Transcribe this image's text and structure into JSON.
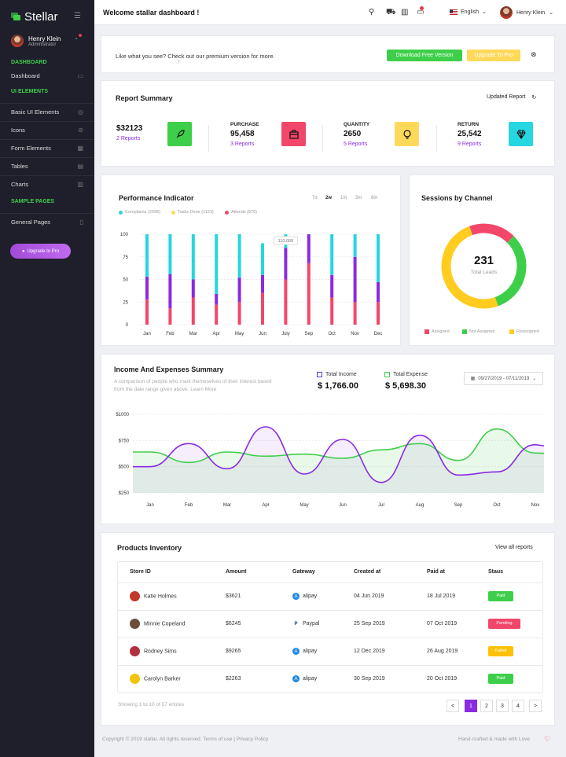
{
  "brand": {
    "name": "Stellar"
  },
  "user": {
    "name": "Henry Klein",
    "role": "Administrator"
  },
  "sidebar": {
    "sections": [
      "DASHBOARD",
      "UI ELEMENTS",
      "SAMPLE PAGES"
    ],
    "items": [
      {
        "label": "Dashboard",
        "icon": "monitor-icon"
      },
      {
        "label": "Basic UI Elements",
        "icon": "target-icon"
      },
      {
        "label": "Icons",
        "icon": "globe-icon"
      },
      {
        "label": "Form Elements",
        "icon": "grid-icon"
      },
      {
        "label": "Tables",
        "icon": "table-icon"
      },
      {
        "label": "Charts",
        "icon": "bar-chart-icon"
      },
      {
        "label": "General Pages",
        "icon": "file-icon"
      }
    ],
    "upgrade_label": "Upgrade to Pro"
  },
  "topbar": {
    "welcome": "Welcome stallar dashboard !",
    "language": "English",
    "user_name": "Henry Klein"
  },
  "promo": {
    "text": "Like what you see? Check out our premium version for more.",
    "download_label": "Download Free Version",
    "upgrade_label": "Upgrade To Pro"
  },
  "report": {
    "title": "Report Summary",
    "updated_label": "Updated Report",
    "stats": [
      {
        "label": "",
        "value": "$32123",
        "sub": "2 Reports",
        "color": "#3ecf4a",
        "icon": "rocket-icon"
      },
      {
        "label": "PURCHASE",
        "value": "95,458",
        "sub": "3 Reports",
        "color": "#f2476a",
        "icon": "briefcase-icon"
      },
      {
        "label": "QUANTITY",
        "value": "2650",
        "sub": "5 Reports",
        "color": "#ffd95a",
        "icon": "lightbulb-icon"
      },
      {
        "label": "RETURN",
        "value": "25,542",
        "sub": "9 Reports",
        "color": "#26d6e0",
        "icon": "diamond-icon"
      }
    ]
  },
  "performance": {
    "title": "Performance Indicator",
    "tabs": [
      "7d",
      "2w",
      "1m",
      "3m",
      "6m"
    ],
    "active_tab": "2w",
    "tooltip": "110,000"
  },
  "sessions": {
    "title": "Sessions by Channel",
    "total": "231",
    "total_label": "Total Leads"
  },
  "income": {
    "title": "Income And Expenses Summary",
    "description": "A comparison of people who mark themeselves of their interest based from the date range given above. Learn More",
    "total_income_label": "Total Income",
    "total_income": "$ 1,766.00",
    "total_expense_label": "Total Expense",
    "total_expense": "$ 5,698.30",
    "date_range": "09/27/2019 - 07/11/2019"
  },
  "inventory": {
    "title": "Products Inventory",
    "view_all": "View all reports",
    "columns": [
      "Store ID",
      "Amount",
      "Gateway",
      "Created at",
      "Paid at",
      "Staus"
    ],
    "rows": [
      {
        "store": "Katie Holmes",
        "amount": "$3621",
        "gateway": "alipay",
        "created": "04 Jun 2019",
        "paid": "18 Jul 2019",
        "status": "Paid",
        "status_color": "#3ecf4a",
        "avatar": "#c0392b"
      },
      {
        "store": "Minnie Copeland",
        "amount": "$6245",
        "gateway": "Paypal",
        "created": "25 Sep 2019",
        "paid": "07 Oct 2019",
        "status": "Pending",
        "status_color": "#f2476a",
        "avatar": "#6b4f3a"
      },
      {
        "store": "Rodney Sims",
        "amount": "$9265",
        "gateway": "alipay",
        "created": "12 Dec 2019",
        "paid": "26 Aug 2019",
        "status": "Failed",
        "status_color": "#ffc107",
        "avatar": "#b03040"
      },
      {
        "store": "Carolyn Barker",
        "amount": "$2263",
        "gateway": "alipay",
        "created": "30 Sep 2019",
        "paid": "20 Oct 2019",
        "status": "Paid",
        "status_color": "#3ecf4a",
        "avatar": "#f1c40f"
      }
    ],
    "showing": "Showing 1 to 10 of 57 entries",
    "pages": [
      "<",
      "1",
      "2",
      "3",
      "4",
      ">"
    ]
  },
  "footer": {
    "copyright": "Copyright © 2019 stallar. All rights reserved. Terms of use | Privacy Policy",
    "credit": "Hand-crafted & made with Love"
  },
  "chart_data": [
    {
      "type": "bar",
      "title": "Performance Indicator",
      "categories": [
        "Jan",
        "Feb",
        "Mar",
        "Apr",
        "May",
        "Jun",
        "July",
        "Sep",
        "Oct",
        "Nov",
        "Dec"
      ],
      "ylim": [
        0,
        100
      ],
      "yticks": [
        0,
        25,
        50,
        75,
        100
      ],
      "stacked": true,
      "series": [
        {
          "name": "Attends (876)",
          "color": "#f2476a",
          "values": [
            28,
            18,
            30,
            22,
            25,
            35,
            50,
            68,
            30,
            25,
            25
          ]
        },
        {
          "name": "Tasks Done (1123)",
          "color": "#8a2be2",
          "values": [
            25,
            38,
            20,
            12,
            27,
            20,
            35,
            32,
            25,
            50,
            22
          ]
        },
        {
          "name": "Complaints (2098)",
          "color": "#26d6e0",
          "values": [
            47,
            44,
            50,
            66,
            48,
            35,
            15,
            0,
            45,
            25,
            53
          ]
        }
      ]
    },
    {
      "type": "pie",
      "title": "Sessions by Channel",
      "series": [
        {
          "name": "Assigned",
          "color": "#f2476a",
          "value": 18
        },
        {
          "name": "Not Assigned",
          "color": "#3ecf4a",
          "value": 32
        },
        {
          "name": "Reassigned",
          "color": "#ffcc1f",
          "value": 50
        }
      ]
    },
    {
      "type": "line",
      "title": "Income And Expenses Summary",
      "categories": [
        "Jan",
        "Feb",
        "Mar",
        "Apr",
        "May",
        "Jun",
        "Jul",
        "Aug",
        "Sep",
        "Oct",
        "Nov"
      ],
      "ylim": [
        250,
        1000
      ],
      "yticks": [
        "$250",
        "$500",
        "$750",
        "$1000"
      ],
      "series": [
        {
          "name": "Total Income",
          "color": "#8a2be2",
          "values": [
            500,
            720,
            480,
            880,
            430,
            760,
            350,
            800,
            420,
            450,
            710
          ]
        },
        {
          "name": "Total Expense",
          "color": "#3ecf4a",
          "values": [
            640,
            540,
            640,
            600,
            620,
            580,
            660,
            720,
            560,
            860,
            630
          ]
        }
      ]
    }
  ]
}
